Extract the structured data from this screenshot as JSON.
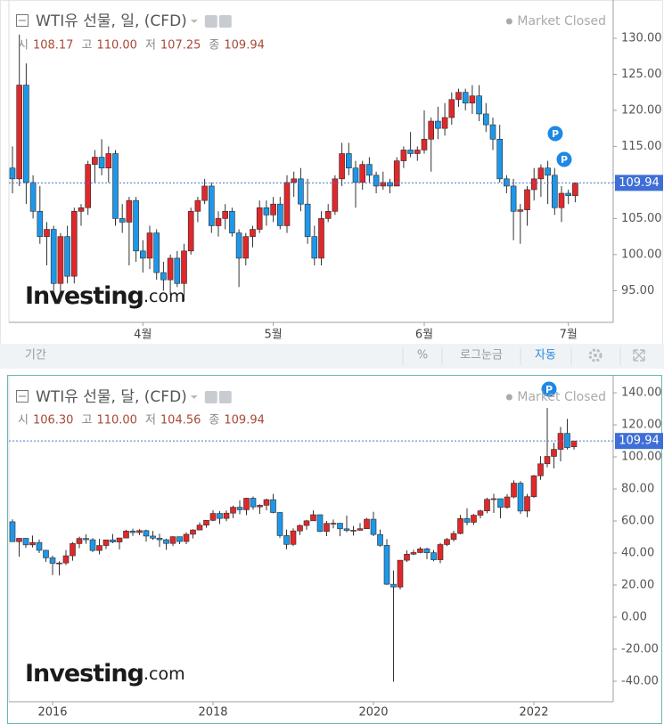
{
  "chart_data": [
    {
      "type": "candlestick",
      "title": "WTI유 선물, 일, (CFD)",
      "status": "Market Closed",
      "ohlc_legend": [
        {
          "key": "시",
          "value": "108.17"
        },
        {
          "key": "고",
          "value": "110.00"
        },
        {
          "key": "저",
          "value": "107.25"
        },
        {
          "key": "종",
          "value": "109.94"
        }
      ],
      "categories": [
        null,
        null,
        null,
        null,
        null,
        null,
        null,
        null,
        null,
        null,
        null,
        null,
        null,
        null,
        null,
        null,
        null,
        null,
        null,
        "4월",
        null,
        null,
        null,
        null,
        null,
        null,
        null,
        null,
        null,
        null,
        null,
        null,
        null,
        null,
        null,
        null,
        null,
        null,
        "5월",
        null,
        null,
        null,
        null,
        null,
        null,
        null,
        null,
        null,
        null,
        null,
        null,
        null,
        null,
        null,
        null,
        null,
        null,
        null,
        null,
        null,
        "6월",
        null,
        null,
        null,
        null,
        null,
        null,
        null,
        null,
        null,
        null,
        null,
        null,
        null,
        null,
        null,
        null,
        null,
        null,
        null,
        null,
        "7월",
        null
      ],
      "open": [
        112,
        110.5,
        123.5,
        110,
        106,
        102.5,
        103.5,
        96,
        102.5,
        97,
        106,
        106.5,
        112.5,
        113.5,
        112,
        114,
        105,
        104.5,
        107.5,
        100.5,
        99.5,
        103,
        97.5,
        96.5,
        99.5,
        96,
        100.5,
        106,
        107.5,
        109.5,
        104,
        105,
        106,
        103,
        99.5,
        102.5,
        103.5,
        106.5,
        105.5,
        107,
        104,
        110,
        110.5,
        107,
        102.5,
        99.5,
        105,
        106,
        110.5,
        114,
        112,
        110,
        112.5,
        111,
        109.5,
        110,
        109.5,
        113,
        114.5,
        114,
        114.5,
        116,
        118.5,
        117.5,
        119,
        121.5,
        122.5,
        121,
        122,
        119.5,
        118,
        116,
        110.5,
        109.5,
        106,
        106.2,
        109,
        110.5,
        112,
        111,
        106.5,
        108.5,
        108.17
      ],
      "high": [
        115,
        130.5,
        126.5,
        111,
        109.5,
        104.5,
        104,
        103,
        104,
        106.5,
        107,
        113,
        114.5,
        116,
        115,
        114.5,
        107,
        108,
        108,
        102,
        104,
        103.5,
        99,
        100,
        100.5,
        101.5,
        106.5,
        108,
        110.5,
        110,
        106,
        107,
        106.5,
        103.5,
        103,
        104,
        107.5,
        107.5,
        108,
        108,
        111,
        111.5,
        112,
        110.5,
        104,
        106,
        107,
        111,
        115.5,
        115.5,
        113,
        113,
        113.5,
        111.5,
        111.5,
        110.5,
        113.5,
        115,
        117,
        115,
        120,
        119,
        120.5,
        121,
        122.5,
        123,
        123,
        123.5,
        123.5,
        121,
        119,
        118,
        111,
        110.5,
        107,
        109.5,
        112,
        112.5,
        113,
        112,
        109.5,
        109,
        110
      ],
      "low": [
        108.5,
        109.5,
        107,
        105,
        101.5,
        98.5,
        95,
        93.5,
        96,
        96,
        104,
        105.5,
        110,
        111,
        110,
        104,
        103,
        98.5,
        99,
        97.5,
        98,
        96.5,
        95,
        94.5,
        95.5,
        93.5,
        100,
        104.5,
        107,
        103,
        102.5,
        103.5,
        102.5,
        95.5,
        98.5,
        101,
        103,
        104,
        104.5,
        103.5,
        103,
        108,
        106,
        101.5,
        98.5,
        98.5,
        104.5,
        105.5,
        109.5,
        111,
        106.5,
        109,
        110,
        108.5,
        109,
        108.5,
        109.5,
        112,
        113.5,
        113,
        114,
        111.5,
        116,
        116.5,
        118,
        120.5,
        120,
        119.5,
        118.5,
        117,
        114.5,
        110,
        108.5,
        102,
        101.5,
        104,
        107.5,
        108,
        107,
        105.5,
        104.5,
        107,
        107.25
      ],
      "close": [
        110.5,
        123.5,
        110,
        106,
        102.5,
        103.5,
        96,
        102.5,
        97,
        106,
        106.5,
        112.5,
        113.5,
        112,
        114,
        105,
        104.5,
        107.5,
        100.5,
        99.5,
        103,
        97.5,
        96.5,
        99.5,
        96,
        100.5,
        106,
        107.5,
        109.5,
        104,
        105,
        106,
        103,
        99.5,
        102.5,
        103.5,
        106.5,
        105.5,
        107,
        104,
        110,
        110.5,
        107,
        102.5,
        99.5,
        105,
        106,
        110.5,
        114,
        112,
        110,
        112.5,
        111,
        109.5,
        110,
        109.5,
        113,
        114.5,
        114,
        114.5,
        116,
        118.5,
        117.5,
        119,
        121.5,
        122.5,
        121,
        122,
        119.5,
        118,
        116,
        110.5,
        109.5,
        106,
        106.2,
        109,
        110.5,
        112,
        111,
        106.5,
        108.5,
        108.17,
        109.94
      ],
      "up_color": "#e0282c",
      "down_color": "#1f97e8",
      "ylim": [
        90.6,
        135.3
      ],
      "yticks": [
        {
          "value": 95,
          "label": "95.00"
        },
        {
          "value": 100,
          "label": "100.00"
        },
        {
          "value": 105,
          "label": "105.00"
        },
        {
          "value": 110,
          "label": "110.00"
        },
        {
          "value": 115,
          "label": "115.00"
        },
        {
          "value": 120,
          "label": "120.00"
        },
        {
          "value": 125,
          "label": "125.00"
        },
        {
          "value": 130,
          "label": "130.00"
        }
      ],
      "last_price": {
        "value": 109.94,
        "label": "109.94"
      },
      "annotations": [
        {
          "label": "P"
        },
        {
          "label": "P"
        }
      ],
      "watermark": [
        "Investing",
        ".com"
      ],
      "toolbar": [
        "기간",
        "%",
        "로그눈금",
        "자동"
      ]
    },
    {
      "type": "candlestick",
      "title": "WTI유 선물, 달, (CFD)",
      "status": "Market Closed",
      "ohlc_legend": [
        {
          "key": "시",
          "value": "106.30"
        },
        {
          "key": "고",
          "value": "110.00"
        },
        {
          "key": "저",
          "value": "104.56"
        },
        {
          "key": "종",
          "value": "109.94"
        }
      ],
      "categories": [
        null,
        null,
        null,
        null,
        null,
        null,
        "2016",
        null,
        null,
        null,
        null,
        null,
        null,
        null,
        null,
        null,
        null,
        null,
        null,
        null,
        null,
        null,
        null,
        null,
        null,
        null,
        null,
        null,
        null,
        null,
        "2018",
        null,
        null,
        null,
        null,
        null,
        null,
        null,
        null,
        null,
        null,
        null,
        null,
        null,
        null,
        null,
        null,
        null,
        null,
        null,
        null,
        null,
        null,
        null,
        "2020",
        null,
        null,
        null,
        null,
        null,
        null,
        null,
        null,
        null,
        null,
        null,
        null,
        null,
        null,
        null,
        null,
        null,
        null,
        null,
        null,
        null,
        null,
        null,
        "2022",
        null,
        null,
        null,
        null,
        null,
        null
      ],
      "open": [
        59.5,
        47.1,
        49.2,
        45.1,
        46.6,
        41.7,
        37,
        33.6,
        33.8,
        38.3,
        45.9,
        49.1,
        48.3,
        41.6,
        44.7,
        48.2,
        46.9,
        49.4,
        53.7,
        52.8,
        54,
        50.6,
        49.3,
        48.3,
        46,
        50.2,
        47.2,
        51.7,
        54.4,
        57.4,
        60.4,
        64.7,
        61.6,
        64.9,
        68.6,
        67,
        74.2,
        68.8,
        69.8,
        73.3,
        65.3,
        50.9,
        45.4,
        53.8,
        57.2,
        60.1,
        63.9,
        53.5,
        58.5,
        58.6,
        55.1,
        54.1,
        54.2,
        55.2,
        61.1,
        51.6,
        44.8,
        20.5,
        18.8,
        35.5,
        39.3,
        40.3,
        42.6,
        40.2,
        35.8,
        45.3,
        48.5,
        52.2,
        61.5,
        59.2,
        63.6,
        66.3,
        73.5,
        73.9,
        68.5,
        75,
        83.6,
        66.2,
        75.2,
        88.2,
        95.7,
        100.3,
        104.7,
        114.7,
        106.3
      ],
      "high": [
        61,
        49.3,
        49.4,
        50.9,
        48.4,
        42,
        38.4,
        34.8,
        41.9,
        46.8,
        50.2,
        51.7,
        49.4,
        48.8,
        48.3,
        51.9,
        49.5,
        54.5,
        55.2,
        54.9,
        54.6,
        53.8,
        52,
        48.9,
        50.4,
        50.2,
        52.9,
        54.9,
        59.1,
        60.5,
        66.7,
        66.2,
        66.6,
        69.6,
        72.9,
        74.5,
        75.3,
        70.4,
        74,
        76.9,
        65.5,
        54.6,
        55.4,
        57.8,
        60.7,
        66.6,
        63.9,
        60,
        60.9,
        58.8,
        63.4,
        56.9,
        58.7,
        61.9,
        65.7,
        54.7,
        48.7,
        29.1,
        35.5,
        41.6,
        42,
        43.8,
        43.4,
        41.9,
        46.3,
        49.4,
        53.9,
        63.8,
        67.9,
        64.4,
        67,
        74.5,
        76.98,
        73.9,
        76.7,
        85.4,
        84.9,
        76.9,
        88.8,
        100.5,
        130.5,
        108.8,
        118.7,
        123.7,
        110
      ],
      "low": [
        47,
        37.8,
        43.2,
        43.5,
        40,
        34.5,
        26.2,
        26,
        32.5,
        35.2,
        43,
        45.8,
        40.6,
        39.2,
        42.5,
        46.1,
        42.2,
        49.4,
        50.7,
        51.2,
        47.1,
        48.2,
        43.8,
        42,
        44.4,
        45.6,
        45.6,
        49.1,
        54.2,
        55.8,
        59.9,
        58.1,
        59.8,
        61.8,
        64.2,
        63.6,
        67,
        64.4,
        66.7,
        64.8,
        49.4,
        42.4,
        44.4,
        51.2,
        54.5,
        60,
        53,
        50.6,
        55.4,
        50.5,
        53,
        50.9,
        54,
        55,
        50.6,
        44,
        20.1,
        -40.3,
        17.3,
        34.4,
        38.7,
        39.9,
        36.1,
        34.9,
        33.6,
        44.3,
        47.2,
        51.6,
        57.3,
        57.6,
        61.6,
        64.8,
        65,
        61.7,
        67.6,
        74.2,
        64.4,
        62.4,
        74.3,
        85.7,
        93.5,
        92.9,
        97.2,
        104.6,
        104.56
      ],
      "close": [
        47.1,
        49.2,
        45.1,
        46.6,
        41.7,
        37,
        33.6,
        33.8,
        38.3,
        45.9,
        49.1,
        48.3,
        41.6,
        44.7,
        48.2,
        46.9,
        49.4,
        53.7,
        52.8,
        54,
        50.6,
        49.3,
        48.3,
        46,
        50.2,
        47.2,
        51.7,
        54.4,
        57.4,
        60.4,
        64.7,
        61.6,
        64.9,
        68.6,
        67,
        74.2,
        68.8,
        69.8,
        73.3,
        65.3,
        50.9,
        45.4,
        53.8,
        57.2,
        60.1,
        63.9,
        53.5,
        58.5,
        58.6,
        55.1,
        54.1,
        54.2,
        55.2,
        61.1,
        51.6,
        44.8,
        20.5,
        18.8,
        35.5,
        39.3,
        40.3,
        42.6,
        40.2,
        35.8,
        45.3,
        48.5,
        52.2,
        61.5,
        59.2,
        63.6,
        66.3,
        73.5,
        73.9,
        68.5,
        75,
        83.6,
        66.2,
        75.2,
        88.2,
        95.7,
        100.3,
        104.7,
        114.7,
        105.8,
        109.94
      ],
      "up_color": "#e0282c",
      "down_color": "#1f97e8",
      "ylim": [
        -52.8,
        150.6
      ],
      "yticks": [
        {
          "value": -40,
          "label": "-40.00"
        },
        {
          "value": -20,
          "label": "-20.00"
        },
        {
          "value": 0,
          "label": "0.00"
        },
        {
          "value": 20,
          "label": "20.00"
        },
        {
          "value": 40,
          "label": "40.00"
        },
        {
          "value": 60,
          "label": "60.00"
        },
        {
          "value": 80,
          "label": "80.00"
        },
        {
          "value": 100,
          "label": "100.00"
        },
        {
          "value": 120,
          "label": "120.00"
        },
        {
          "value": 140,
          "label": "140.00"
        }
      ],
      "last_price": {
        "value": 109.94,
        "label": "109.94"
      },
      "annotations": [
        {
          "label": "P"
        }
      ],
      "watermark": [
        "Investing",
        ".com"
      ]
    }
  ]
}
